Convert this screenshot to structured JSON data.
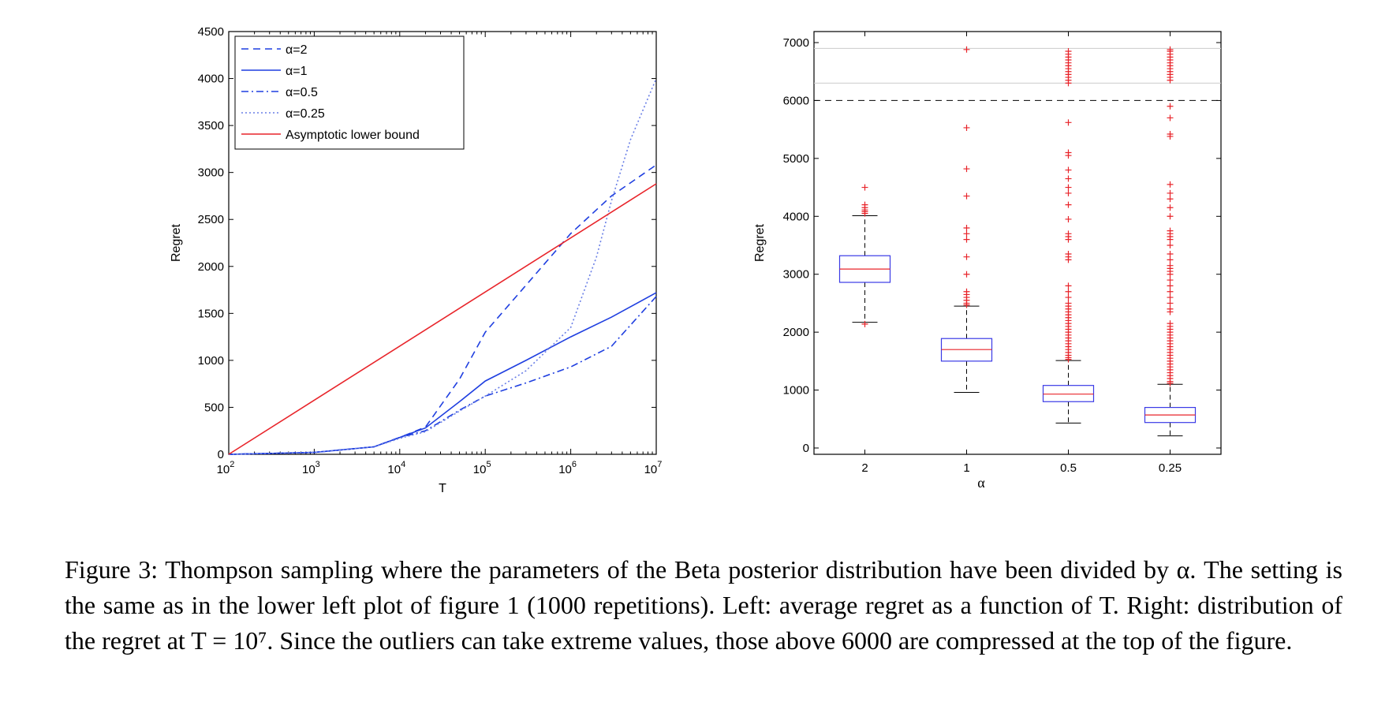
{
  "chart_data": [
    {
      "type": "line",
      "xlabel": "T",
      "ylabel": "Regret",
      "x_scale": "log",
      "xlim": [
        100,
        10000000
      ],
      "ylim": [
        0,
        4500
      ],
      "x_ticks": [
        {
          "base": "10",
          "exp": "2",
          "value": 100
        },
        {
          "base": "10",
          "exp": "3",
          "value": 1000
        },
        {
          "base": "10",
          "exp": "4",
          "value": 10000
        },
        {
          "base": "10",
          "exp": "5",
          "value": 100000
        },
        {
          "base": "10",
          "exp": "6",
          "value": 1000000
        },
        {
          "base": "10",
          "exp": "7",
          "value": 10000000
        }
      ],
      "y_ticks": [
        "0",
        "500",
        "1000",
        "1500",
        "2000",
        "2500",
        "3000",
        "3500",
        "4000",
        "4500"
      ],
      "legend_position": "top-left",
      "series": [
        {
          "name": "α=2",
          "style": "dashed",
          "color": "#1f3fe0",
          "points": [
            [
              100,
              0
            ],
            [
              1000,
              20
            ],
            [
              5000,
              80
            ],
            [
              10000,
              180
            ],
            [
              20000,
              290
            ],
            [
              50000,
              800
            ],
            [
              100000,
              1300
            ],
            [
              300000,
              1800
            ],
            [
              1000000,
              2350
            ],
            [
              3000000,
              2750
            ],
            [
              10000000,
              3080
            ]
          ]
        },
        {
          "name": "α=1",
          "style": "solid",
          "color": "#1f3fe0",
          "points": [
            [
              100,
              0
            ],
            [
              1000,
              20
            ],
            [
              5000,
              80
            ],
            [
              10000,
              180
            ],
            [
              20000,
              280
            ],
            [
              50000,
              560
            ],
            [
              100000,
              780
            ],
            [
              300000,
              1000
            ],
            [
              1000000,
              1250
            ],
            [
              3000000,
              1460
            ],
            [
              10000000,
              1720
            ]
          ]
        },
        {
          "name": "α=0.5",
          "style": "dashdot",
          "color": "#1f3fe0",
          "points": [
            [
              100,
              0
            ],
            [
              1000,
              20
            ],
            [
              5000,
              80
            ],
            [
              10000,
              180
            ],
            [
              20000,
              250
            ],
            [
              50000,
              470
            ],
            [
              100000,
              620
            ],
            [
              300000,
              760
            ],
            [
              1000000,
              930
            ],
            [
              3000000,
              1150
            ],
            [
              10000000,
              1680
            ]
          ]
        },
        {
          "name": "α=0.25",
          "style": "dotted",
          "color": "#6a7fe6",
          "points": [
            [
              100,
              0
            ],
            [
              1000,
              20
            ],
            [
              5000,
              80
            ],
            [
              10000,
              170
            ],
            [
              20000,
              240
            ],
            [
              50000,
              460
            ],
            [
              100000,
              620
            ],
            [
              300000,
              890
            ],
            [
              1000000,
              1350
            ],
            [
              2000000,
              2100
            ],
            [
              3000000,
              2700
            ],
            [
              5000000,
              3350
            ],
            [
              10000000,
              4000
            ]
          ]
        },
        {
          "name": "Asymptotic lower bound",
          "style": "solid",
          "color": "#e8242a",
          "points": [
            [
              100,
              0
            ],
            [
              10000000,
              2880
            ]
          ]
        }
      ]
    },
    {
      "type": "box",
      "xlabel": "α",
      "ylabel": "Regret",
      "ylim": [
        0,
        7000
      ],
      "y_ticks": [
        "0",
        "1000",
        "2000",
        "3000",
        "4000",
        "5000",
        "6000",
        "7000"
      ],
      "threshold_line": 6000,
      "reference_lines": [
        6300,
        6900
      ],
      "categories": [
        "2",
        "1",
        "0.5",
        "0.25"
      ],
      "boxes": [
        {
          "category": "2",
          "whisker_low": 2170,
          "q1": 2860,
          "median": 3090,
          "q3": 3320,
          "whisker_high": 4010,
          "outliers": [
            2140,
            4050,
            4080,
            4110,
            4150,
            4200,
            4500
          ]
        },
        {
          "category": "1",
          "whisker_low": 960,
          "q1": 1500,
          "median": 1700,
          "q3": 1890,
          "whisker_high": 2450,
          "outliers": [
            2470,
            2500,
            2550,
            2600,
            2650,
            2700,
            3000,
            3300,
            3600,
            3700,
            3800,
            4350,
            4820,
            5530,
            6880
          ]
        },
        {
          "category": "0.5",
          "whisker_low": 430,
          "q1": 800,
          "median": 930,
          "q3": 1080,
          "whisker_high": 1510,
          "outliers": [
            1530,
            1560,
            1600,
            1650,
            1700,
            1750,
            1800,
            1850,
            1900,
            1950,
            2000,
            2050,
            2100,
            2150,
            2200,
            2250,
            2300,
            2350,
            2400,
            2450,
            2500,
            2600,
            2700,
            2800,
            3250,
            3300,
            3350,
            3600,
            3650,
            3700,
            3950,
            4200,
            4400,
            4500,
            4650,
            4800,
            5050,
            5100,
            5620,
            6300,
            6350,
            6400,
            6450,
            6500,
            6550,
            6600,
            6650,
            6700,
            6750,
            6800,
            6850
          ]
        },
        {
          "category": "0.25",
          "whisker_low": 210,
          "q1": 440,
          "median": 570,
          "q3": 700,
          "whisker_high": 1100,
          "outliers": [
            1120,
            1150,
            1200,
            1250,
            1300,
            1350,
            1400,
            1450,
            1500,
            1550,
            1600,
            1650,
            1700,
            1750,
            1800,
            1850,
            1900,
            1950,
            2000,
            2050,
            2100,
            2150,
            2350,
            2400,
            2500,
            2600,
            2700,
            2800,
            2900,
            3000,
            3050,
            3100,
            3150,
            3250,
            3350,
            3500,
            3600,
            3650,
            3700,
            3750,
            4000,
            4150,
            4300,
            4400,
            4550,
            5380,
            5420,
            5700,
            5900,
            6350,
            6400,
            6450,
            6500,
            6550,
            6600,
            6650,
            6700,
            6750,
            6800,
            6850,
            6880
          ]
        }
      ]
    }
  ],
  "caption": "Figure 3: Thompson sampling where the parameters of the Beta posterior distribution have been divided by α. The setting is the same as in the lower left plot of figure 1 (1000 repetitions). Left: average regret as a function of T. Right: distribution of the regret at T = 10⁷. Since the outliers can take extreme values, those above 6000 are compressed at the top of the figure."
}
